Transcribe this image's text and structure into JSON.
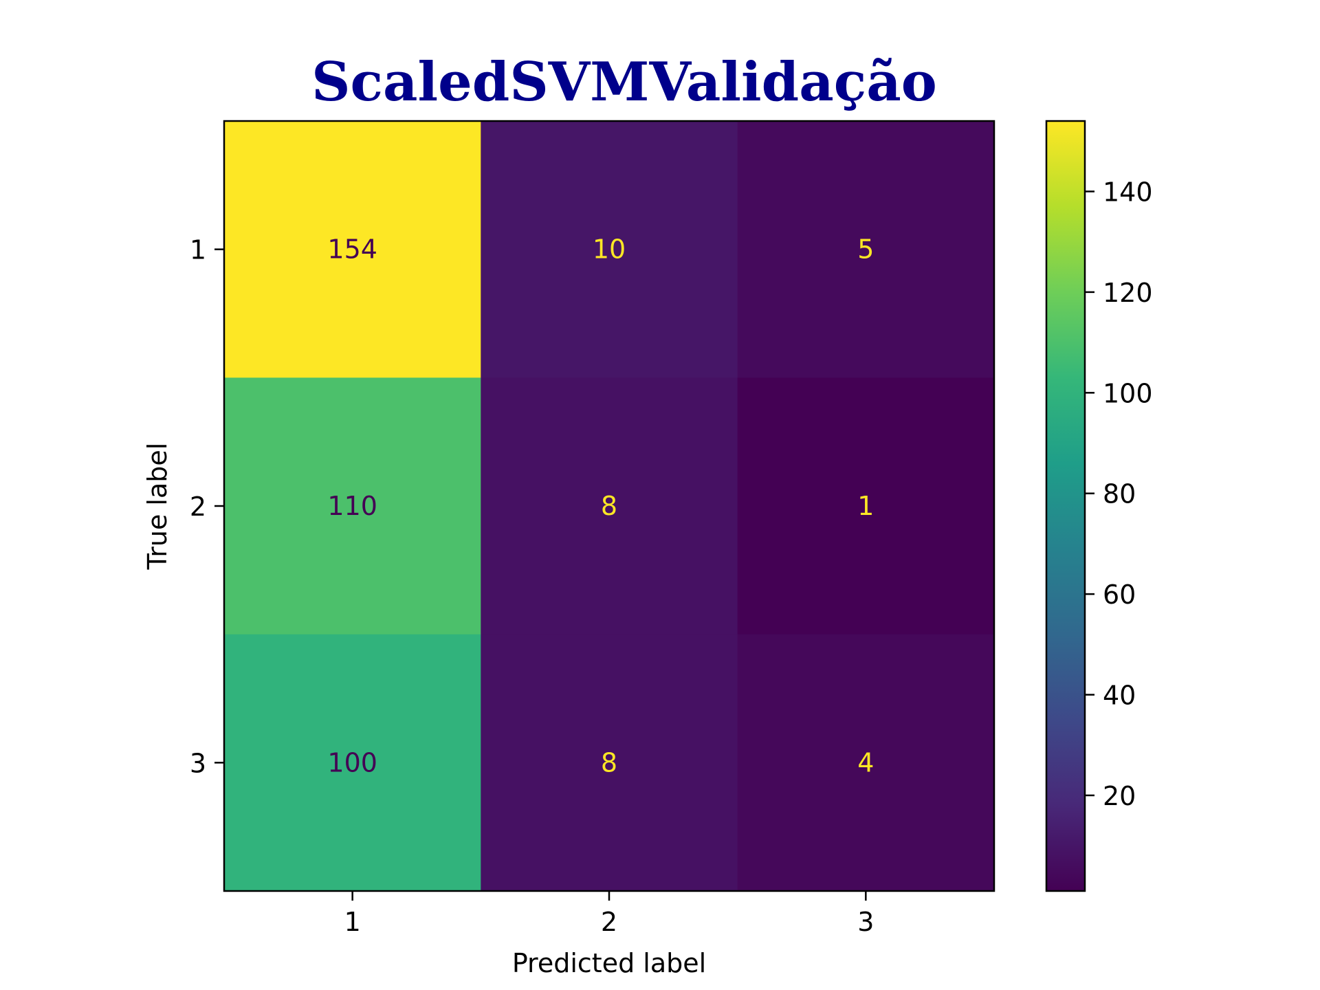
{
  "chart_data": {
    "type": "heatmap",
    "title": "ScaledSVMValidação",
    "title_color": "#00008b",
    "xlabel": "Predicted label",
    "ylabel": "True label",
    "x_categories": [
      "1",
      "2",
      "3"
    ],
    "y_categories": [
      "1",
      "2",
      "3"
    ],
    "values": [
      [
        154,
        10,
        5
      ],
      [
        110,
        8,
        1
      ],
      [
        100,
        8,
        4
      ]
    ],
    "colormap": "viridis",
    "color_range": [
      1,
      154
    ],
    "colorbar_ticks": [
      "20",
      "40",
      "60",
      "80",
      "100",
      "120",
      "140"
    ],
    "text_color_dark": "#440154",
    "text_color_light": "#fde725",
    "grid": false
  }
}
